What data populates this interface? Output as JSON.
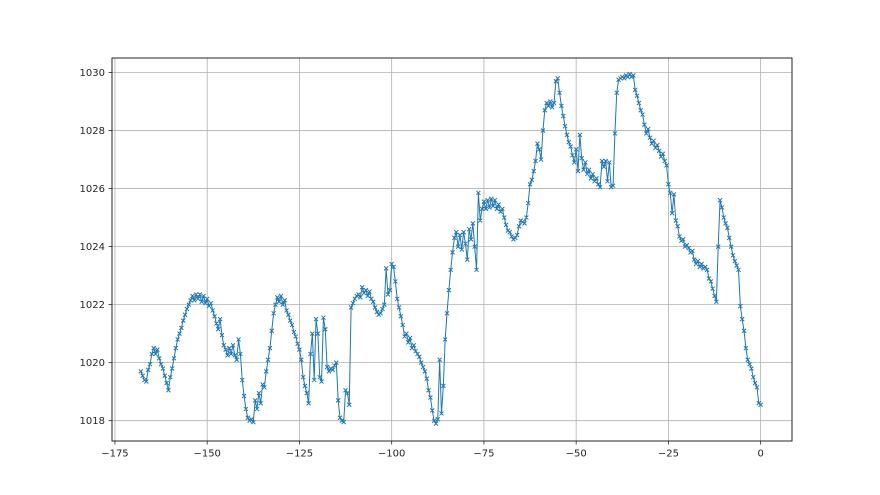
{
  "figure": {
    "background": "#ffffff"
  },
  "chart_data": {
    "type": "line",
    "title": "",
    "xlabel": "",
    "ylabel": "",
    "grid": true,
    "legend": null,
    "xlim": [
      -175.8,
      8.5
    ],
    "ylim": [
      1017.3,
      1030.5
    ],
    "xticks": [
      -175,
      -150,
      -125,
      -100,
      -75,
      -50,
      -25,
      0
    ],
    "xtick_labels": [
      "−175",
      "−150",
      "−125",
      "−100",
      "−75",
      "−50",
      "−25",
      "0"
    ],
    "yticks": [
      1018,
      1020,
      1022,
      1024,
      1026,
      1028,
      1030
    ],
    "ytick_labels": [
      "1018",
      "1020",
      "1022",
      "1024",
      "1026",
      "1028",
      "1030"
    ],
    "colors": {
      "series": "#1f77b4",
      "grid": "#b0b0b0",
      "spine": "#262626",
      "tick": "#262626",
      "tick_label": "#262626",
      "background": "#ffffff"
    },
    "series": [
      {
        "name": "series-0",
        "marker": "x",
        "x_start": -168,
        "x_step": 0.5,
        "values": [
          1019.7,
          1019.55,
          1019.4,
          1019.35,
          1019.75,
          1019.95,
          1020.3,
          1020.5,
          1020.3,
          1020.45,
          1020.15,
          1019.95,
          1019.8,
          1019.55,
          1019.3,
          1019.05,
          1019.5,
          1019.8,
          1020.15,
          1020.5,
          1020.8,
          1021.0,
          1021.2,
          1021.45,
          1021.65,
          1021.85,
          1022.0,
          1022.15,
          1022.3,
          1022.15,
          1022.35,
          1022.2,
          1022.35,
          1022.1,
          1022.3,
          1022.05,
          1022.2,
          1021.95,
          1022.05,
          1021.8,
          1021.6,
          1021.35,
          1021.15,
          1021.5,
          1020.95,
          1020.6,
          1020.45,
          1020.25,
          1020.5,
          1020.3,
          1020.6,
          1020.25,
          1020.1,
          1020.8,
          1020.3,
          1019.4,
          1018.85,
          1018.4,
          1018.1,
          1018.0,
          1018.05,
          1017.95,
          1018.7,
          1018.4,
          1018.95,
          1018.6,
          1019.25,
          1019.15,
          1019.7,
          1020.1,
          1020.5,
          1021.1,
          1021.7,
          1022.0,
          1022.25,
          1022.1,
          1022.3,
          1022.0,
          1022.15,
          1021.8,
          1021.65,
          1021.45,
          1021.3,
          1021.05,
          1020.9,
          1020.65,
          1020.45,
          1020.1,
          1019.5,
          1019.2,
          1018.95,
          1018.6,
          1020.3,
          1021.0,
          1019.4,
          1021.5,
          1021.0,
          1019.5,
          1019.35,
          1021.55,
          1021.15,
          1019.85,
          1019.7,
          1019.8,
          1019.75,
          1019.9,
          1020.0,
          1018.7,
          1018.1,
          1018.0,
          1017.95,
          1019.05,
          1018.95,
          1018.55,
          1021.9,
          1022.05,
          1022.2,
          1022.3,
          1022.35,
          1022.25,
          1022.6,
          1022.4,
          1022.5,
          1022.3,
          1022.45,
          1022.2,
          1022.1,
          1021.9,
          1021.75,
          1021.65,
          1021.7,
          1021.85,
          1022.0,
          1023.25,
          1022.35,
          1022.5,
          1023.4,
          1023.3,
          1022.8,
          1022.2,
          1021.9,
          1021.6,
          1021.3,
          1020.9,
          1021.0,
          1020.7,
          1020.85,
          1020.5,
          1020.6,
          1020.4,
          1020.3,
          1020.2,
          1020.0,
          1019.85,
          1019.7,
          1019.45,
          1019.05,
          1018.8,
          1018.35,
          1018.0,
          1017.9,
          1018.05,
          1020.1,
          1018.25,
          1019.2,
          1020.8,
          1021.7,
          1022.5,
          1023.2,
          1023.8,
          1024.3,
          1024.5,
          1024.0,
          1024.4,
          1023.9,
          1024.5,
          1024.1,
          1023.55,
          1024.6,
          1024.25,
          1024.8,
          1024.0,
          1023.2,
          1025.85,
          1024.9,
          1025.3,
          1025.55,
          1025.3,
          1025.6,
          1025.35,
          1025.65,
          1025.4,
          1025.6,
          1025.3,
          1025.45,
          1025.2,
          1025.3,
          1025.0,
          1024.75,
          1024.55,
          1024.5,
          1024.35,
          1024.25,
          1024.3,
          1024.4,
          1024.7,
          1024.9,
          1024.85,
          1024.8,
          1025.0,
          1025.5,
          1026.15,
          1026.3,
          1026.6,
          1026.95,
          1027.55,
          1027.35,
          1027.0,
          1028.0,
          1028.7,
          1028.95,
          1028.85,
          1029.0,
          1028.8,
          1028.95,
          1029.7,
          1029.8,
          1029.3,
          1028.85,
          1028.5,
          1028.15,
          1027.85,
          1027.6,
          1027.45,
          1027.15,
          1026.9,
          1027.35,
          1026.6,
          1027.85,
          1027.05,
          1026.65,
          1026.9,
          1026.5,
          1026.65,
          1026.35,
          1026.5,
          1026.25,
          1026.35,
          1026.15,
          1026.05,
          1026.95,
          1026.75,
          1026.95,
          1026.25,
          1026.9,
          1026.05,
          1026.1,
          1027.9,
          1029.3,
          1029.75,
          1029.8,
          1029.85,
          1029.8,
          1029.9,
          1029.85,
          1029.95,
          1029.85,
          1029.9,
          1029.4,
          1029.2,
          1028.95,
          1028.7,
          1028.55,
          1028.2,
          1027.9,
          1028.05,
          1027.75,
          1027.55,
          1027.65,
          1027.4,
          1027.5,
          1027.3,
          1027.1,
          1027.2,
          1026.95,
          1026.8,
          1026.15,
          1025.85,
          1025.15,
          1025.8,
          1024.9,
          1024.7,
          1024.35,
          1024.2,
          1024.25,
          1024.0,
          1024.05,
          1023.95,
          1023.8,
          1023.85,
          1023.55,
          1023.4,
          1023.5,
          1023.3,
          1023.4,
          1023.25,
          1023.3,
          1023.2,
          1022.9,
          1022.8,
          1022.55,
          1022.3,
          1022.1,
          1024.0,
          1025.6,
          1025.35,
          1025.0,
          1024.8,
          1024.65,
          1024.3,
          1024.0,
          1023.7,
          1023.5,
          1023.35,
          1023.2,
          1021.95,
          1021.5,
          1021.1,
          1020.5,
          1020.1,
          1019.95,
          1019.8,
          1019.5,
          1019.3,
          1019.15,
          1018.6,
          1018.55
        ]
      }
    ]
  }
}
